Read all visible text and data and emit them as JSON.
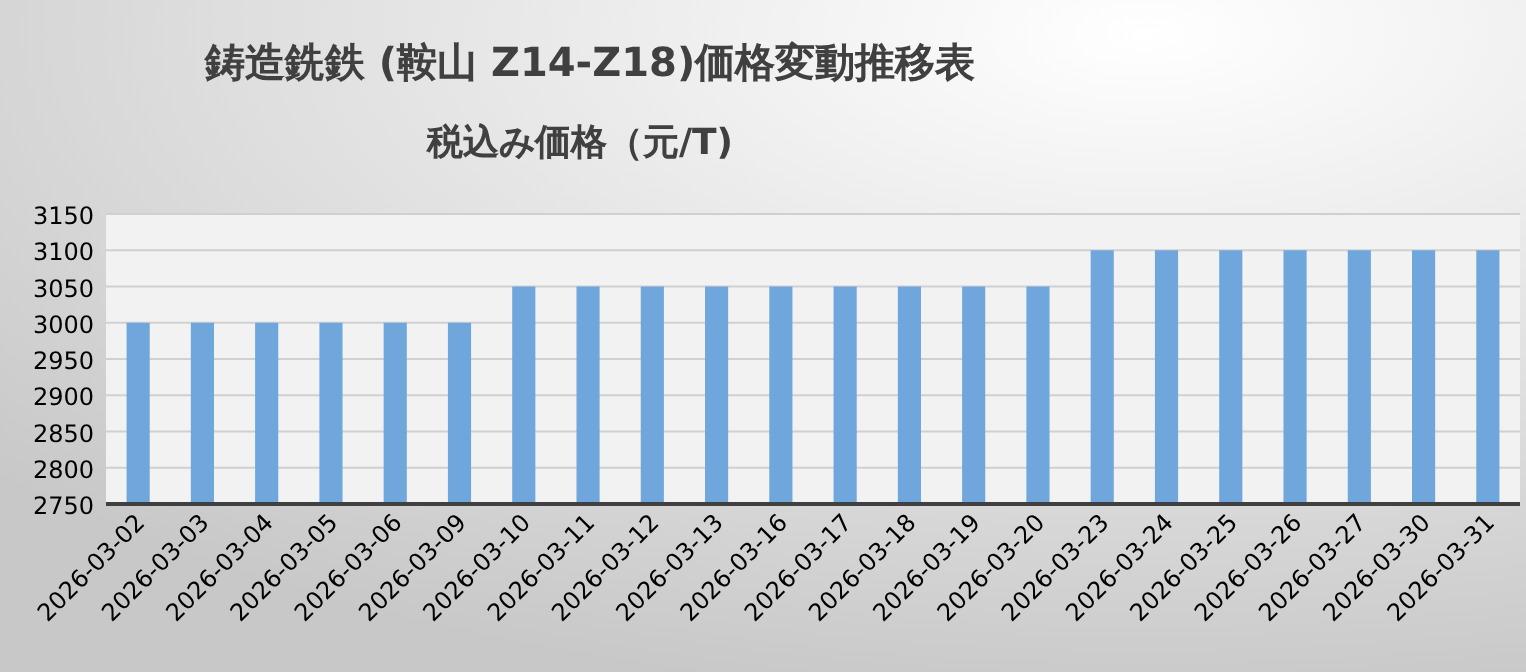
{
  "chart_data": {
    "type": "bar",
    "title": "鋳造銑鉄 (鞍山 Z14-Z18)価格変動推移表",
    "subtitle": "税込み価格（元/T)",
    "categories": [
      "2026-03-02",
      "2026-03-03",
      "2026-03-04",
      "2026-03-05",
      "2026-03-06",
      "2026-03-09",
      "2026-03-10",
      "2026-03-11",
      "2026-03-12",
      "2026-03-13",
      "2026-03-16",
      "2026-03-17",
      "2026-03-18",
      "2026-03-19",
      "2026-03-20",
      "2026-03-23",
      "2026-03-24",
      "2026-03-25",
      "2026-03-26",
      "2026-03-27",
      "2026-03-30",
      "2026-03-31"
    ],
    "values": [
      3000,
      3000,
      3000,
      3000,
      3000,
      3000,
      3050,
      3050,
      3050,
      3050,
      3050,
      3050,
      3050,
      3050,
      3050,
      3100,
      3100,
      3100,
      3100,
      3100,
      3100,
      3100
    ],
    "color": "#6fa6db",
    "ylim": [
      2750,
      3150
    ],
    "yticks": [
      2750,
      2800,
      2850,
      2900,
      2950,
      3000,
      3050,
      3100,
      3150
    ],
    "grid": "y"
  }
}
